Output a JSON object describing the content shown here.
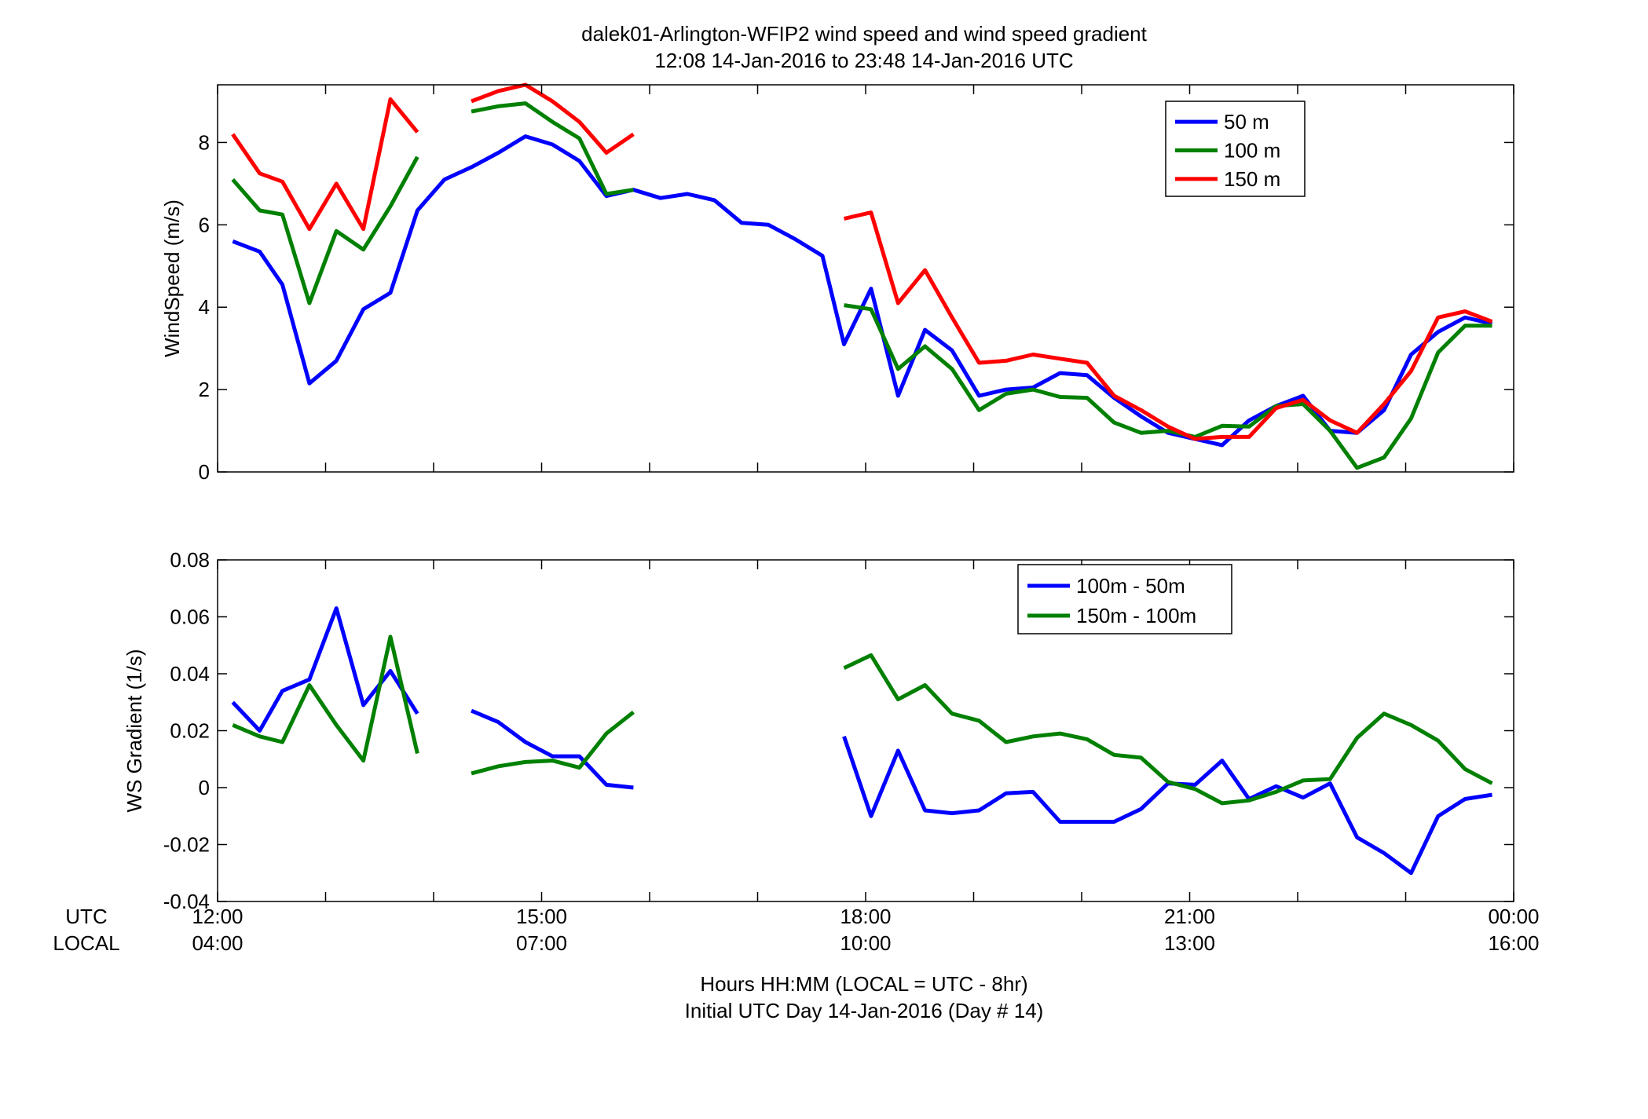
{
  "figure": {
    "title_line1": "dalek01-Arlington-WFIP2  wind speed and wind speed gradient",
    "title_line2": "12:08 14-Jan-2016 to 23:48 14-Jan-2016  UTC",
    "xlabel_line1": "Hours HH:MM  (LOCAL = UTC - 8hr)",
    "xlabel_line2": "Initial UTC Day 14-Jan-2016 (Day # 14)",
    "utc_row_label": "UTC",
    "local_row_label": "LOCAL",
    "x_ticks": [
      {
        "hour": 12,
        "utc": "12:00",
        "local": "04:00"
      },
      {
        "hour": 15,
        "utc": "15:00",
        "local": "07:00"
      },
      {
        "hour": 18,
        "utc": "18:00",
        "local": "10:00"
      },
      {
        "hour": 21,
        "utc": "21:00",
        "local": "13:00"
      },
      {
        "hour": 24,
        "utc": "00:00",
        "local": "16:00"
      }
    ]
  },
  "chart_data": [
    {
      "type": "line",
      "ylabel": "WindSpeed (m/s)",
      "xlim": [
        12,
        24
      ],
      "ylim": [
        0,
        9.4
      ],
      "yticks": [
        0,
        2,
        4,
        6,
        8
      ],
      "legend_position": "top-right",
      "x": [
        12.14,
        12.39,
        12.6,
        12.85,
        13.1,
        13.35,
        13.6,
        13.85,
        14.1,
        14.35,
        14.6,
        14.85,
        15.1,
        15.35,
        15.6,
        15.85,
        16.1,
        16.35,
        16.6,
        16.85,
        17.1,
        17.35,
        17.6,
        17.8,
        18.05,
        18.3,
        18.55,
        18.8,
        19.05,
        19.3,
        19.55,
        19.8,
        20.05,
        20.3,
        20.55,
        20.8,
        21.05,
        21.3,
        21.55,
        21.8,
        22.05,
        22.3,
        22.55,
        22.8,
        23.05,
        23.3,
        23.55,
        23.8
      ],
      "series": [
        {
          "name": "50 m",
          "color": "#0000ff",
          "values": [
            5.6,
            5.35,
            4.55,
            2.15,
            2.7,
            3.95,
            4.35,
            6.35,
            7.1,
            7.4,
            7.75,
            8.15,
            7.95,
            7.55,
            6.7,
            6.85,
            6.65,
            6.75,
            6.6,
            6.05,
            6.0,
            5.65,
            5.25,
            3.1,
            4.45,
            1.85,
            3.45,
            2.95,
            1.85,
            2.0,
            2.05,
            2.4,
            2.35,
            1.8,
            1.35,
            0.95,
            0.8,
            0.65,
            1.25,
            1.6,
            1.85,
            1.0,
            0.95,
            1.5,
            2.85,
            3.4,
            3.75,
            3.6
          ]
        },
        {
          "name": "100 m",
          "color": "#008000",
          "values": [
            7.1,
            6.35,
            6.25,
            4.1,
            5.85,
            5.4,
            6.45,
            7.65,
            null,
            8.75,
            8.88,
            8.95,
            8.5,
            8.1,
            6.75,
            6.85,
            null,
            null,
            null,
            null,
            null,
            null,
            null,
            4.05,
            3.95,
            2.5,
            3.05,
            2.5,
            1.5,
            1.9,
            2.0,
            1.82,
            1.8,
            1.2,
            0.95,
            1.0,
            0.85,
            1.12,
            1.1,
            1.6,
            1.65,
            1.0,
            0.1,
            0.35,
            1.3,
            2.9,
            3.55,
            3.55
          ]
        },
        {
          "name": "150 m",
          "color": "#ff0000",
          "values": [
            8.2,
            7.25,
            7.05,
            5.9,
            7.0,
            5.9,
            9.05,
            8.25,
            null,
            9.0,
            9.25,
            9.4,
            9.0,
            8.5,
            7.75,
            8.2,
            null,
            null,
            null,
            null,
            null,
            null,
            null,
            6.15,
            6.3,
            4.1,
            4.9,
            3.75,
            2.65,
            2.7,
            2.85,
            2.75,
            2.65,
            1.85,
            1.5,
            1.1,
            0.8,
            0.85,
            0.85,
            1.55,
            1.75,
            1.25,
            0.95,
            1.65,
            2.45,
            3.75,
            3.9,
            3.65
          ]
        }
      ]
    },
    {
      "type": "line",
      "ylabel": "WS Gradient (1/s)",
      "xlim": [
        12,
        24
      ],
      "ylim": [
        -0.04,
        0.08
      ],
      "yticks": [
        -0.04,
        -0.02,
        0,
        0.02,
        0.04,
        0.06,
        0.08
      ],
      "legend_position": "top-right",
      "x": [
        12.14,
        12.39,
        12.6,
        12.85,
        13.1,
        13.35,
        13.6,
        13.85,
        14.1,
        14.35,
        14.6,
        14.85,
        15.1,
        15.35,
        15.6,
        15.85,
        16.1,
        16.35,
        16.6,
        16.85,
        17.1,
        17.35,
        17.6,
        17.8,
        18.05,
        18.3,
        18.55,
        18.8,
        19.05,
        19.3,
        19.55,
        19.8,
        20.05,
        20.3,
        20.55,
        20.8,
        21.05,
        21.3,
        21.55,
        21.8,
        22.05,
        22.3,
        22.55,
        22.8,
        23.05,
        23.3,
        23.55,
        23.8
      ],
      "series": [
        {
          "name": "100m - 50m",
          "color": "#0000ff",
          "values": [
            0.03,
            0.02,
            0.034,
            0.038,
            0.063,
            0.029,
            0.041,
            0.026,
            null,
            0.027,
            0.023,
            0.016,
            0.011,
            0.011,
            0.001,
            0.0,
            null,
            null,
            null,
            null,
            null,
            null,
            null,
            0.018,
            -0.01,
            0.013,
            -0.008,
            -0.009,
            -0.008,
            -0.002,
            -0.0015,
            -0.012,
            -0.012,
            -0.012,
            -0.0075,
            0.0015,
            0.001,
            0.0095,
            -0.004,
            0.0005,
            -0.0035,
            0.0015,
            -0.0175,
            -0.023,
            -0.03,
            -0.01,
            -0.004,
            -0.0025
          ]
        },
        {
          "name": "150m - 100m",
          "color": "#008000",
          "values": [
            0.022,
            0.018,
            0.016,
            0.036,
            0.022,
            0.0095,
            0.053,
            0.012,
            null,
            0.005,
            0.0075,
            0.009,
            0.0095,
            0.007,
            0.019,
            0.0265,
            null,
            null,
            null,
            null,
            null,
            null,
            null,
            0.042,
            0.0465,
            0.031,
            0.036,
            0.026,
            0.0235,
            0.016,
            0.018,
            0.019,
            0.017,
            0.0115,
            0.0105,
            0.002,
            -0.0005,
            -0.0055,
            -0.0045,
            -0.0015,
            0.0025,
            0.003,
            0.0175,
            0.026,
            0.022,
            0.0165,
            0.0065,
            0.0015
          ]
        }
      ]
    }
  ]
}
